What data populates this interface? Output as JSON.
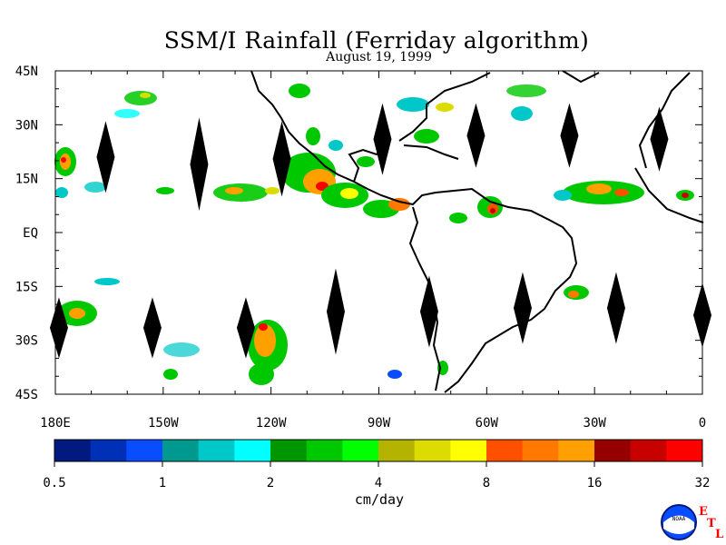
{
  "title": "SSM/I Rainfall (Ferriday algorithm)",
  "subtitle": "August 19, 1999",
  "map": {
    "lat_labels": [
      {
        "label": "45N",
        "lat": 45
      },
      {
        "label": "30N",
        "lat": 30
      },
      {
        "label": "15N",
        "lat": 15
      },
      {
        "label": "EQ",
        "lat": 0
      },
      {
        "label": "15S",
        "lat": -15
      },
      {
        "label": "30S",
        "lat": -30
      },
      {
        "label": "45S",
        "lat": -45
      }
    ],
    "lon_labels": [
      {
        "label": "180E",
        "lon": -180
      },
      {
        "label": "150W",
        "lon": -150
      },
      {
        "label": "120W",
        "lon": -120
      },
      {
        "label": "90W",
        "lon": -90
      },
      {
        "label": "60W",
        "lon": -60
      },
      {
        "label": "30W",
        "lon": -30
      },
      {
        "label": "0",
        "lon": 0
      }
    ],
    "lon_range": [
      -180,
      0
    ],
    "lat_range": [
      -45,
      45
    ],
    "no_data_swath_gaps": [
      {
        "lon": -166,
        "lat_top": 31,
        "lat_bottom": 11
      },
      {
        "lon": -140,
        "lat_top": 32,
        "lat_bottom": 6
      },
      {
        "lon": -117,
        "lat_top": 31,
        "lat_bottom": 10
      },
      {
        "lon": -89,
        "lat_top": 36,
        "lat_bottom": 16
      },
      {
        "lon": -63,
        "lat_top": 36,
        "lat_bottom": 18
      },
      {
        "lon": -37,
        "lat_top": 36,
        "lat_bottom": 18
      },
      {
        "lon": -12,
        "lat_top": 35,
        "lat_bottom": 17
      },
      {
        "lon": -179,
        "lat_top": -18,
        "lat_bottom": -35
      },
      {
        "lon": -153,
        "lat_top": -18,
        "lat_bottom": -35
      },
      {
        "lon": -127,
        "lat_top": -18,
        "lat_bottom": -35
      },
      {
        "lon": -102,
        "lat_top": -10,
        "lat_bottom": -34
      },
      {
        "lon": -76,
        "lat_top": -12,
        "lat_bottom": -32
      },
      {
        "lon": -50,
        "lat_top": -11,
        "lat_bottom": -31
      },
      {
        "lon": -24,
        "lat_top": -11,
        "lat_bottom": -31
      },
      {
        "lon": 0,
        "lat_top": -14,
        "lat_bottom": -32
      }
    ]
  },
  "colorbar": {
    "unit": "cm/day",
    "tick_labels": [
      "0.5",
      "1",
      "2",
      "4",
      "8",
      "16",
      "32"
    ],
    "colors": [
      "#001a80",
      "#0030b8",
      "#0a4cff",
      "#00998f",
      "#00c8c8",
      "#00ffff",
      "#009600",
      "#00c800",
      "#00ff00",
      "#b4b400",
      "#dcdc00",
      "#ffff00",
      "#ff5000",
      "#ff7800",
      "#ffa000",
      "#960000",
      "#c80000",
      "#ff0000"
    ]
  },
  "logo": {
    "noaa_text": "NOAA",
    "etl_letters": [
      "E",
      "T",
      "L"
    ]
  }
}
